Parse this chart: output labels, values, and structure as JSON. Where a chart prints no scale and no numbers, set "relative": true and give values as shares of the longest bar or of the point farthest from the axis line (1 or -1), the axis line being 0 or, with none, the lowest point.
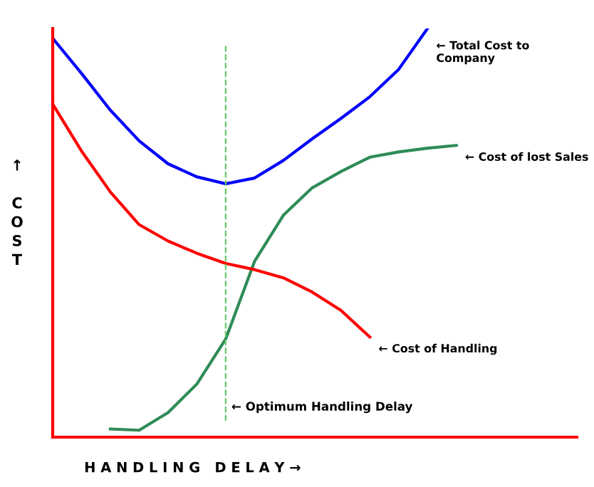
{
  "chart_data": {
    "type": "line",
    "relative": true,
    "xlabel": "H A N D L I N G   D E L A Y →",
    "ylabel": "↑ COST",
    "marker": "none",
    "line_style": "solid",
    "categories": [
      null,
      null,
      null,
      null,
      null,
      null,
      null,
      null,
      null,
      null,
      null,
      null,
      null,
      null,
      null
    ],
    "series": [
      {
        "name": "← Total Cost to Company",
        "color": "#0000ff",
        "values": [
          0.976,
          0.89,
          0.8,
          0.725,
          0.669,
          0.637,
          0.62,
          0.634,
          0.677,
          0.73,
          0.78,
          0.833,
          0.9,
          1.0,
          null
        ]
      },
      {
        "name": "← Cost of lost Sales",
        "color": "#2e8b57",
        "values": [
          null,
          null,
          0.02,
          0.017,
          0.06,
          0.13,
          0.24,
          0.43,
          0.543,
          0.61,
          0.65,
          0.685,
          0.698,
          0.707,
          0.714
        ]
      },
      {
        "name": "← Cost of Handling",
        "color": "#ff0000",
        "values": [
          0.815,
          0.7,
          0.6,
          0.52,
          0.48,
          0.45,
          0.425,
          0.41,
          0.39,
          0.355,
          0.31,
          0.245,
          null,
          null,
          null
        ]
      }
    ],
    "annotations": [
      "← Optimum Handling Delay"
    ]
  }
}
